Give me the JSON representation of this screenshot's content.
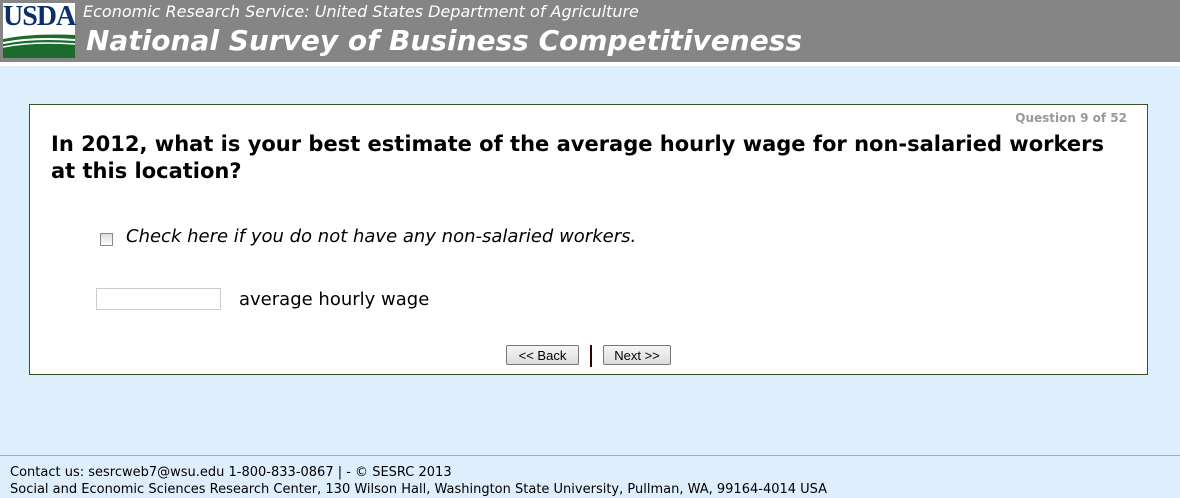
{
  "header": {
    "logo_text": "USDA",
    "subtitle": "Economic Research Service: United States Department of Agriculture",
    "title": "National Survey of Business Competitiveness"
  },
  "survey": {
    "progress": "Question 9 of 52",
    "question": "In 2012, what is your best estimate of the average hourly wage for non-salaried workers at this location?",
    "checkbox_label": "Check here if you do not have any non-salaried workers.",
    "checkbox_checked": false,
    "wage_value": "",
    "wage_label": "average hourly wage",
    "back_label": "<< Back",
    "next_label": "Next >>"
  },
  "footer": {
    "contact": "Contact us: sesrcweb7@wsu.edu 1-800-833-0867 | - © SESRC 2013",
    "address": "Social and Economic Sciences Research Center, 130 Wilson Hall, Washington State University, Pullman, WA, 99164-4014 USA"
  }
}
